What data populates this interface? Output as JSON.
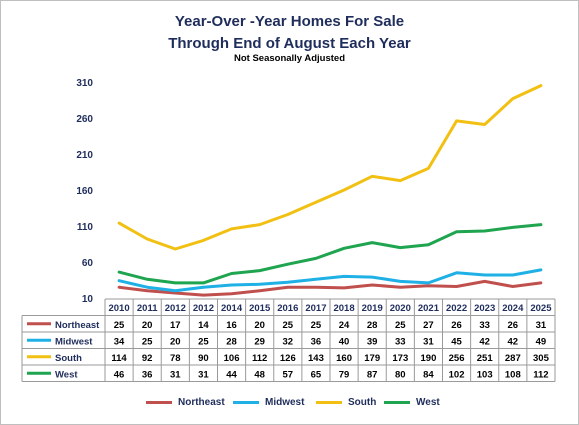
{
  "title": "Year-Over -Year Homes For Sale",
  "subtitle": "Through End of August Each Year",
  "note": "Not Seasonally Adjusted",
  "chart_data": {
    "type": "line",
    "x": [
      "2010",
      "2011",
      "2012",
      "2012",
      "2014",
      "2015",
      "2016",
      "2017",
      "2018",
      "2019",
      "2020",
      "2021",
      "2022",
      "2023",
      "2024",
      "2025"
    ],
    "ylim": [
      10,
      310
    ],
    "yticks": [
      10,
      60,
      110,
      160,
      210,
      260,
      310
    ],
    "grid": false,
    "legend": "bottom",
    "series": [
      {
        "name": "Northeast",
        "color": "#c0504d",
        "values": [
          25,
          20,
          17,
          14,
          16,
          20,
          25,
          25,
          24,
          28,
          25,
          27,
          26,
          33,
          26,
          31
        ]
      },
      {
        "name": "Midwest",
        "color": "#1fb0e6",
        "values": [
          34,
          25,
          20,
          25,
          28,
          29,
          32,
          36,
          40,
          39,
          33,
          31,
          45,
          42,
          42,
          49
        ]
      },
      {
        "name": "South",
        "color": "#f2c012",
        "values": [
          114,
          92,
          78,
          90,
          106,
          112,
          126,
          143,
          160,
          179,
          173,
          190,
          256,
          251,
          287,
          305
        ]
      },
      {
        "name": "West",
        "color": "#1fa44f",
        "values": [
          46,
          36,
          31,
          31,
          44,
          48,
          57,
          65,
          79,
          87,
          80,
          84,
          102,
          103,
          108,
          112
        ]
      }
    ]
  }
}
